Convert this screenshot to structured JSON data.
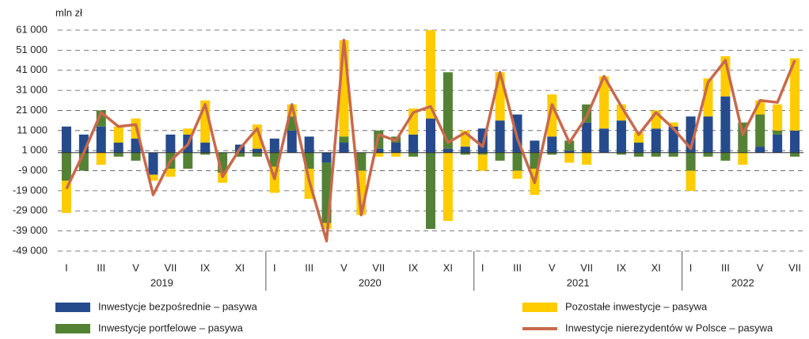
{
  "chart_data": {
    "type": "stacked-bar-line",
    "y_label": "mln zł",
    "categories": [
      "I",
      null,
      "III",
      null,
      "V",
      null,
      "VII",
      null,
      "IX",
      null,
      "XI",
      null,
      "I",
      null,
      "III",
      null,
      "V",
      null,
      "VII",
      null,
      "IX",
      null,
      "XI",
      null,
      "I",
      null,
      "III",
      null,
      "V",
      null,
      "VII",
      null,
      "IX",
      null,
      "XI",
      null,
      "I",
      null,
      "III",
      null,
      "V",
      null,
      "VII"
    ],
    "years": [
      "2019",
      "2020",
      "2021",
      "2022"
    ],
    "ylim": [
      -49000,
      61000
    ],
    "yticks": [
      {
        "value": -49000,
        "label": "-49 000"
      },
      {
        "value": -39000,
        "label": "-39 000"
      },
      {
        "value": -29000,
        "label": "-29 000"
      },
      {
        "value": -19000,
        "label": "-19 000"
      },
      {
        "value": -9000,
        "label": "-9 000"
      },
      {
        "value": 1000,
        "label": "1 000"
      },
      {
        "value": 11000,
        "label": "11 000"
      },
      {
        "value": 21000,
        "label": "21 000"
      },
      {
        "value": 31000,
        "label": "31 000"
      },
      {
        "value": 41000,
        "label": "41 000"
      },
      {
        "value": 51000,
        "label": "51 000"
      },
      {
        "value": 61000,
        "label": "61 000"
      }
    ],
    "grid": true,
    "series": [
      {
        "name": "Inwestycje bezpośrednie – pasywa",
        "kind": "bar",
        "color": "#264b8c",
        "values": [
          13000,
          9000,
          13000,
          5000,
          7000,
          -11000,
          9000,
          9000,
          5000,
          0,
          4000,
          2000,
          7000,
          11000,
          8000,
          -5000,
          5000,
          0,
          2000,
          5000,
          9000,
          17000,
          2000,
          3000,
          12000,
          16000,
          19000,
          6000,
          8000,
          1000,
          15000,
          12000,
          16000,
          5000,
          12000,
          13000,
          18000,
          18000,
          28000,
          0,
          3000,
          9000,
          11000
        ]
      },
      {
        "name": "Inwestycje portfelowe – pasywa",
        "kind": "bar",
        "color": "#548235",
        "values": [
          -14000,
          -9000,
          8000,
          -2000,
          -4000,
          0,
          -8000,
          -8000,
          -1000,
          -10000,
          -2000,
          -2000,
          -7000,
          7000,
          -8000,
          -30000,
          3000,
          -9000,
          9000,
          3000,
          -2000,
          -38000,
          38000,
          -1000,
          -1000,
          -4000,
          -9000,
          -8000,
          -1000,
          5000,
          9000,
          0,
          -1000,
          -2000,
          -2000,
          -2000,
          -9000,
          -2000,
          -4000,
          15000,
          16000,
          2000,
          -2000
        ]
      },
      {
        "name": "Pozostałe inwestycje – pasywa",
        "kind": "bar",
        "color": "#ffcc00",
        "values": [
          -16000,
          0,
          -6000,
          8000,
          10000,
          -3000,
          -4000,
          3000,
          21000,
          -5000,
          0,
          12000,
          -13000,
          6000,
          -15000,
          -3000,
          48000,
          -22000,
          -2000,
          -2000,
          13000,
          44000,
          -34000,
          8000,
          -8000,
          24000,
          -4000,
          -13000,
          21000,
          -5000,
          -6000,
          26000,
          8000,
          5000,
          9000,
          2000,
          -10000,
          19000,
          20000,
          -6000,
          7000,
          13000,
          36000
        ]
      },
      {
        "name": "Inwestycje nierezydentów w Polsce – pasywa",
        "kind": "line",
        "color": "#c8694b",
        "values": [
          -18000,
          0,
          20000,
          13000,
          14000,
          -21000,
          -4000,
          4000,
          24000,
          -12000,
          2000,
          12000,
          -13000,
          24000,
          -14000,
          -44000,
          56000,
          -31000,
          9000,
          6000,
          20000,
          23000,
          5000,
          10000,
          3000,
          40000,
          7000,
          -15000,
          24000,
          5000,
          18000,
          38000,
          23000,
          9000,
          20000,
          12000,
          2000,
          35000,
          46000,
          9000,
          26000,
          25000,
          46000
        ]
      }
    ]
  }
}
